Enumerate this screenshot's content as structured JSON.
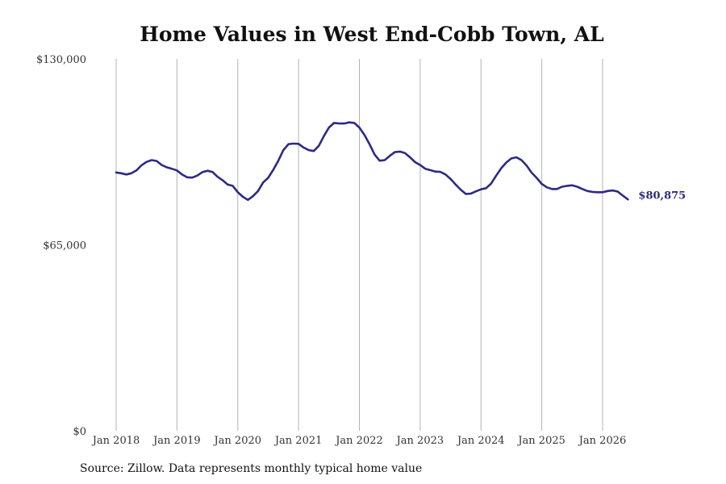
{
  "chart_data": {
    "type": "line",
    "title": "Home Values in West End-Cobb Town, AL",
    "xlabel": "",
    "ylabel": "",
    "ylim": [
      0,
      130000
    ],
    "y_ticks": [
      0,
      65000,
      130000
    ],
    "y_tick_labels": [
      "$0",
      "$65,000",
      "$130,000"
    ],
    "x_ticks": [
      2018,
      2019,
      2020,
      2021,
      2022,
      2023,
      2024,
      2025,
      2026
    ],
    "x_tick_labels": [
      "Jan 2018",
      "Jan 2019",
      "Jan 2020",
      "Jan 2021",
      "Jan 2022",
      "Jan 2023",
      "Jan 2024",
      "Jan 2025",
      "Jan 2026"
    ],
    "grid": "vertical",
    "line_color": "#2d2a84",
    "end_label": "$80,875",
    "series": [
      {
        "x": [
          "2018-01",
          "2018-02",
          "2018-03",
          "2018-04",
          "2018-05",
          "2018-06",
          "2018-07",
          "2018-08",
          "2018-09",
          "2018-10",
          "2018-11",
          "2018-12",
          "2019-01",
          "2019-02",
          "2019-03",
          "2019-04",
          "2019-05",
          "2019-06",
          "2019-07",
          "2019-08",
          "2019-09",
          "2019-10",
          "2019-11",
          "2019-12",
          "2020-01",
          "2020-02",
          "2020-03",
          "2020-04",
          "2020-05",
          "2020-06",
          "2020-07",
          "2020-08",
          "2020-09",
          "2020-10",
          "2020-11",
          "2020-12",
          "2021-01",
          "2021-02",
          "2021-03",
          "2021-04",
          "2021-05",
          "2021-06",
          "2021-07",
          "2021-08",
          "2021-09",
          "2021-10",
          "2021-11",
          "2021-12",
          "2022-01",
          "2022-02",
          "2022-03",
          "2022-04",
          "2022-05",
          "2022-06",
          "2022-07",
          "2022-08",
          "2022-09",
          "2022-10",
          "2022-11",
          "2022-12",
          "2023-01",
          "2023-02",
          "2023-03",
          "2023-04",
          "2023-05",
          "2023-06",
          "2023-07",
          "2023-08",
          "2023-09",
          "2023-10",
          "2023-11",
          "2023-12",
          "2024-01",
          "2024-02",
          "2024-03",
          "2024-04",
          "2024-05",
          "2024-06",
          "2024-07",
          "2024-08",
          "2024-09",
          "2024-10",
          "2024-11",
          "2024-12",
          "2025-01",
          "2025-02",
          "2025-03",
          "2025-04",
          "2025-05",
          "2025-06",
          "2025-07",
          "2025-08",
          "2025-09",
          "2025-10",
          "2025-11",
          "2025-12",
          "2026-01",
          "2026-02",
          "2026-03",
          "2026-04",
          "2026-05",
          "2026-06"
        ],
        "values": [
          90300,
          90000,
          89600,
          90000,
          91000,
          92800,
          94000,
          94600,
          94300,
          92900,
          92100,
          91600,
          91000,
          89600,
          88600,
          88500,
          89200,
          90400,
          90900,
          90500,
          88800,
          87600,
          86100,
          85600,
          83400,
          81800,
          80700,
          82000,
          83800,
          86800,
          88400,
          91200,
          94400,
          98100,
          100200,
          100400,
          100300,
          99000,
          98100,
          97800,
          99600,
          103000,
          106000,
          107600,
          107400,
          107400,
          107800,
          107600,
          106000,
          103400,
          100200,
          96600,
          94400,
          94600,
          96100,
          97400,
          97600,
          97100,
          95600,
          93900,
          92900,
          91600,
          91100,
          90600,
          90500,
          89600,
          88000,
          86100,
          84300,
          82800,
          82900,
          83700,
          84400,
          84800,
          86400,
          89200,
          91800,
          93800,
          95200,
          95600,
          94600,
          92700,
          90200,
          88400,
          86300,
          85100,
          84500,
          84500,
          85300,
          85600,
          85800,
          85300,
          84500,
          83800,
          83500,
          83400,
          83400,
          83800,
          84000,
          83600,
          82200,
          80875
        ]
      }
    ]
  },
  "source": "Source: Zillow. Data represents monthly typical home value"
}
